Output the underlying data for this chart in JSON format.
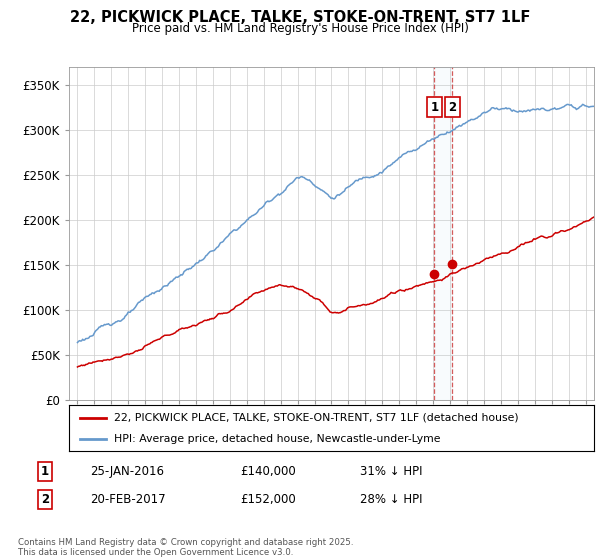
{
  "title": "22, PICKWICK PLACE, TALKE, STOKE-ON-TRENT, ST7 1LF",
  "subtitle": "Price paid vs. HM Land Registry's House Price Index (HPI)",
  "legend_line1": "22, PICKWICK PLACE, TALKE, STOKE-ON-TRENT, ST7 1LF (detached house)",
  "legend_line2": "HPI: Average price, detached house, Newcastle-under-Lyme",
  "sale1_label": "1",
  "sale1_date": "25-JAN-2016",
  "sale1_price": "£140,000",
  "sale1_note": "31% ↓ HPI",
  "sale2_label": "2",
  "sale2_date": "20-FEB-2017",
  "sale2_price": "£152,000",
  "sale2_note": "28% ↓ HPI",
  "footnote": "Contains HM Land Registry data © Crown copyright and database right 2025.\nThis data is licensed under the Open Government Licence v3.0.",
  "red_color": "#cc0000",
  "blue_color": "#6699cc",
  "sale1_x": 2016.07,
  "sale1_y": 140000,
  "sale2_x": 2017.13,
  "sale2_y": 152000,
  "ylim": [
    0,
    370000
  ],
  "xlim": [
    1994.5,
    2025.5
  ],
  "hpi_seed": 123,
  "red_seed": 77
}
